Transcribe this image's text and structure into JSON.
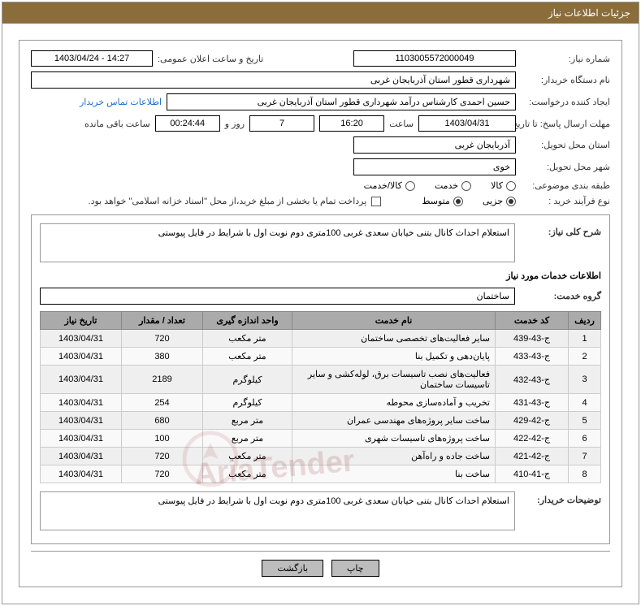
{
  "header": {
    "title": "جزئیات اطلاعات نیاز"
  },
  "fields": {
    "need_number_label": "شماره نیاز:",
    "need_number": "1103005572000049",
    "announce_label": "تاریخ و ساعت اعلان عمومی:",
    "announce_value": "14:27 - 1403/04/24",
    "buyer_org_label": "نام دستگاه خریدار:",
    "buyer_org": "شهرداری قطور استان آذربایجان غربی",
    "requester_label": "ایجاد کننده درخواست:",
    "requester": "حسین احمدی کارشناس درآمد شهرداری قطور استان آذربایجان غربی",
    "contact_link": "اطلاعات تماس خریدار",
    "deadline_label": "مهلت ارسال پاسخ: تا تاریخ:",
    "deadline_date": "1403/04/31",
    "time_label": "ساعت",
    "deadline_time": "16:20",
    "days_remaining": "7",
    "days_label": "روز و",
    "countdown": "00:24:44",
    "remain_label": "ساعت باقی مانده",
    "delivery_province_label": "استان محل تحویل:",
    "delivery_province": "آذربایجان غربی",
    "delivery_city_label": "شهر محل تحویل:",
    "delivery_city": "خوی",
    "subject_class_label": "طبقه بندی موضوعی:",
    "opt_goods": "کالا",
    "opt_service": "خدمت",
    "opt_goods_service": "کالا/خدمت",
    "purchase_type_label": "نوع فرآیند خرید :",
    "opt_partial": "جزیی",
    "opt_medium": "متوسط",
    "payment_note": "پرداخت تمام یا بخشی از مبلغ خرید،از محل \"اسناد خزانه اسلامی\" خواهد بود."
  },
  "need_desc": {
    "label": "شرح کلی نیاز:",
    "text": "استعلام احداث کانال بتنی خیابان سعدی غربی 100متری دوم نوبت اول با شرایط در فایل پیوستی"
  },
  "services_title": "اطلاعات خدمات مورد نیاز",
  "group": {
    "label": "گروه خدمت:",
    "value": "ساختمان"
  },
  "table": {
    "cols": [
      "ردیف",
      "کد خدمت",
      "نام خدمت",
      "واحد اندازه گیری",
      "تعداد / مقدار",
      "تاریخ نیاز"
    ],
    "rows": [
      [
        "1",
        "ج-43-439",
        "سایر فعالیت‌های تخصصی ساختمان",
        "متر مکعب",
        "720",
        "1403/04/31"
      ],
      [
        "2",
        "ج-43-433",
        "پایان‌دهی و تکمیل بنا",
        "متر مکعب",
        "380",
        "1403/04/31"
      ],
      [
        "3",
        "ج-43-432",
        "فعالیت‌های نصب تاسیسات برق، لوله‌کشی و سایر تاسیسات ساختمان",
        "کیلوگرم",
        "2189",
        "1403/04/31"
      ],
      [
        "4",
        "ج-43-431",
        "تخریب و آماده‌سازی محوطه",
        "کیلوگرم",
        "254",
        "1403/04/31"
      ],
      [
        "5",
        "ج-42-429",
        "ساخت سایر پروژه‌های مهندسی عمران",
        "متر مربع",
        "680",
        "1403/04/31"
      ],
      [
        "6",
        "ج-42-422",
        "ساخت پروژه‌های تاسیسات شهری",
        "متر مربع",
        "100",
        "1403/04/31"
      ],
      [
        "7",
        "ج-42-421",
        "ساخت جاده و راه‌آهن",
        "متر مکعب",
        "720",
        "1403/04/31"
      ],
      [
        "8",
        "ج-41-410",
        "ساخت بنا",
        "متر مکعب",
        "720",
        "1403/04/31"
      ]
    ]
  },
  "buyer_notes": {
    "label": "توضیحات خریدار:",
    "text": "استعلام احداث کانال بتنی خیابان سعدی غربی  100متری دوم نوبت اول با شرایط در فایل پیوستی"
  },
  "buttons": {
    "print": "چاپ",
    "back": "بازگشت"
  },
  "colors": {
    "header_bg": "#8a6d3b",
    "th_bg": "#aaaaaa",
    "row_odd": "#efefef",
    "row_even": "#f9f9f9",
    "border": "#999999",
    "link": "#1a6fc9",
    "btn_bg": "#bdbdbd"
  }
}
